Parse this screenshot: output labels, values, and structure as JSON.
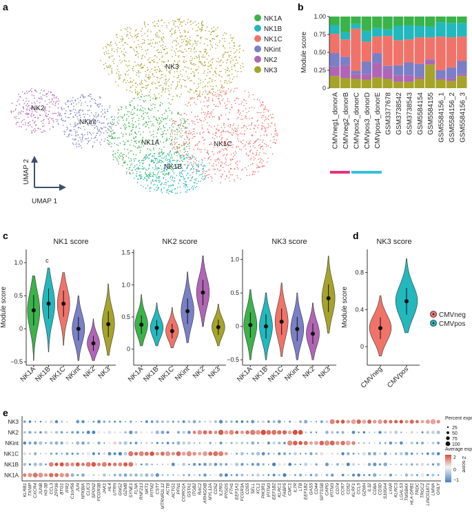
{
  "panel_labels": {
    "a": "a",
    "b": "b",
    "c": "c",
    "d": "d",
    "e": "e"
  },
  "colors": {
    "NK1A": "#3bb34a",
    "NK1B": "#22b8bd",
    "NK1C": "#f0736a",
    "NKint": "#7b7fc6",
    "NK2": "#b066b4",
    "NK3": "#a6a32a",
    "CMVneg": "#f0736a",
    "CMVpos": "#22b8bd",
    "donor_neg": "#e5337a",
    "donor_pos": "#35c0de"
  },
  "panel_a": {
    "legend": [
      "NK1A",
      "NK1B",
      "NK1C",
      "NKint",
      "NK2",
      "NK3"
    ],
    "cluster_labels": [
      "NK3",
      "NK2",
      "NKint",
      "NK1A",
      "NK1C",
      "NK1B"
    ],
    "axis": {
      "y": "UMAP 2",
      "x": "UMAP 1"
    }
  },
  "chart_data": [
    {
      "id": "b",
      "type": "bar",
      "stacked": true,
      "ylabel": "Module score",
      "ylim": [
        0,
        1
      ],
      "yticks": [
        "0",
        "0.25",
        "0.50",
        "0.75",
        "1.00"
      ],
      "categories": [
        "CMVneg1_donorA",
        "CMVneg2_donorB",
        "CMVpos2_donorC",
        "CMVpos3_donorD",
        "CMVpos4_donorE",
        "GSM3377678",
        "GSM3738542",
        "GSM3738543",
        "GSM5584154",
        "GSM5584155",
        "GSM5584156_1",
        "GSM5584156_2",
        "GSM5584156_3"
      ],
      "series": [
        {
          "name": "NK3",
          "values": [
            0.17,
            0.14,
            0.13,
            0.12,
            0.15,
            0.13,
            0.09,
            0.09,
            0.13,
            0.33,
            0.12,
            0.1,
            0.17
          ]
        },
        {
          "name": "NK2",
          "values": [
            0.13,
            0.18,
            0.07,
            0.08,
            0.2,
            0.14,
            0.09,
            0.09,
            0.03,
            0.05,
            0.02,
            0.04,
            0.03
          ]
        },
        {
          "name": "NKint",
          "values": [
            0.19,
            0.12,
            0.04,
            0.17,
            0.14,
            0.04,
            0.14,
            0.18,
            0.18,
            0.02,
            0.11,
            0.15,
            0.18
          ]
        },
        {
          "name": "NK1C",
          "values": [
            0.27,
            0.24,
            0.59,
            0.28,
            0.23,
            0.42,
            0.35,
            0.32,
            0.37,
            0.31,
            0.47,
            0.42,
            0.34
          ]
        },
        {
          "name": "NK1B",
          "values": [
            0.12,
            0.1,
            0.07,
            0.15,
            0.12,
            0.09,
            0.2,
            0.2,
            0.16,
            0.15,
            0.2,
            0.2,
            0.19
          ]
        },
        {
          "name": "NK1A",
          "values": [
            0.12,
            0.22,
            0.1,
            0.2,
            0.16,
            0.18,
            0.13,
            0.12,
            0.13,
            0.14,
            0.08,
            0.09,
            0.09
          ]
        }
      ],
      "groups": [
        {
          "label": "CMVneg",
          "members": [
            0,
            1
          ]
        },
        {
          "label": "CMVpos",
          "members": [
            2,
            3,
            4
          ]
        }
      ]
    },
    {
      "id": "c1",
      "type": "violin",
      "title": "NK1 score",
      "ylabel": "Module score",
      "ylim": [
        -0.55,
        1.2
      ],
      "yticks": [
        -0.5,
        0,
        0.5,
        1.0
      ],
      "yticklabels": [
        "−0.5",
        "0",
        "0.5",
        "1.0"
      ],
      "categories": [
        "NK1A",
        "NK1B",
        "NK1C",
        "NKint",
        "NK2",
        "NK3"
      ],
      "medians": [
        0.28,
        0.38,
        0.38,
        0.0,
        -0.22,
        0.07
      ],
      "ranges": [
        [
          -0.48,
          0.8
        ],
        [
          -0.35,
          0.92
        ],
        [
          -0.25,
          0.85
        ],
        [
          -0.48,
          0.5
        ],
        [
          -0.48,
          0.15
        ],
        [
          -0.4,
          0.68
        ]
      ],
      "annotation": "c"
    },
    {
      "id": "c2",
      "type": "violin",
      "title": "NK2 score",
      "ylabel": "",
      "ylim": [
        -0.25,
        1.55
      ],
      "yticks": [
        0,
        0.5,
        1.0,
        1.5
      ],
      "yticklabels": [
        "0",
        "0.5",
        "1.0",
        "1.5"
      ],
      "categories": [
        "NK1A",
        "NK1B",
        "NK1C",
        "NKint",
        "NK2",
        "NK3"
      ],
      "medians": [
        0.38,
        0.33,
        0.28,
        0.59,
        0.88,
        0.34
      ],
      "ranges": [
        [
          0.05,
          0.85
        ],
        [
          0.05,
          0.72
        ],
        [
          0.02,
          0.65
        ],
        [
          0.1,
          1.2
        ],
        [
          0.35,
          1.45
        ],
        [
          0.05,
          0.7
        ]
      ]
    },
    {
      "id": "c3",
      "type": "violin",
      "title": "NK3 score",
      "ylabel": "",
      "ylim": [
        -0.58,
        1.15
      ],
      "yticks": [
        -0.5,
        0,
        0.5,
        1.0
      ],
      "yticklabels": [
        "−0.5",
        "0",
        "0.5",
        "1.0"
      ],
      "categories": [
        "NK1A",
        "NK1B",
        "NK1C",
        "NKint",
        "NK2",
        "NK3"
      ],
      "medians": [
        0.02,
        0.0,
        0.07,
        -0.04,
        -0.11,
        0.42
      ],
      "ranges": [
        [
          -0.5,
          0.55
        ],
        [
          -0.5,
          0.5
        ],
        [
          -0.45,
          0.65
        ],
        [
          -0.5,
          0.5
        ],
        [
          -0.5,
          0.35
        ],
        [
          -0.1,
          1.05
        ]
      ]
    },
    {
      "id": "d",
      "type": "violin",
      "title": "NK3 score",
      "ylabel": "Module score",
      "ylim": [
        -0.2,
        1.05
      ],
      "yticks": [
        0,
        0.4,
        0.8
      ],
      "yticklabels": [
        "0",
        "0.4",
        "0.8"
      ],
      "categories": [
        "CMVneg",
        "CMVpos"
      ],
      "medians": [
        0.2,
        0.49
      ],
      "ranges": [
        [
          -0.1,
          0.55
        ],
        [
          0.15,
          0.95
        ]
      ],
      "legend": [
        "CMVneg",
        "CMVpos"
      ]
    },
    {
      "id": "e",
      "type": "dotplot",
      "rows": [
        "NK3",
        "NK2",
        "NKint",
        "NK1C",
        "NK1B",
        "NK1A"
      ],
      "genes": [
        "KLRB1",
        "TXNIP",
        "CXCR4",
        "JUNB",
        "H3-3B",
        "CCL3",
        "ZFP36",
        "BTG1",
        "IFR2",
        "C1orf56",
        "JUN",
        "NFKBIA",
        "CLIC3",
        "SPON2",
        "FCGR3B",
        "JAK1",
        "HL4",
        "UTRN",
        "GNG2",
        "GZMB",
        "SYNE1",
        "FLNA",
        "RNF213",
        "NKT1",
        "IFITM2",
        "CST7",
        "MTRNR2L12",
        "ACTB",
        "ACTG1",
        "PFN1",
        "CORO1A",
        "GSTA1",
        "ITGB2",
        "RAC2",
        "ARHGDIB",
        "MYL12A",
        "CD52",
        "IL2RG",
        "PTGDS",
        "FTH1",
        "EEF1A1",
        "FCGR3A",
        "CD55",
        "SELL",
        "XCL1",
        "PIK3R1",
        "IFITM3",
        "EEF1B2",
        "KLRC1",
        "FABP5",
        "CMC1",
        "IL7R",
        "LTB",
        "EEF1B2",
        "GAS5",
        "CD44",
        "SPTSSB",
        "CAPG",
        "IFITM3",
        "CD74",
        "CCR7",
        "CD52",
        "KLRF1",
        "CCL5",
        "GZMH",
        "IL32",
        "CD8A",
        "CD3D",
        "S100A4",
        "LYAR",
        "KLRC3",
        "LGALS3",
        "TMSB4X",
        "HLA-DPB1",
        "TRDC",
        "TRGC2",
        "LINC01871",
        "LMNA",
        "GNLY"
      ],
      "legend": {
        "size_title": "Percent expressed",
        "size_levels": [
          "25",
          "50",
          "75",
          "100"
        ],
        "color_title": "Average expression",
        "color_ticks": [
          "2",
          "0",
          "−1"
        ],
        "color_side": "Z-score"
      }
    }
  ]
}
